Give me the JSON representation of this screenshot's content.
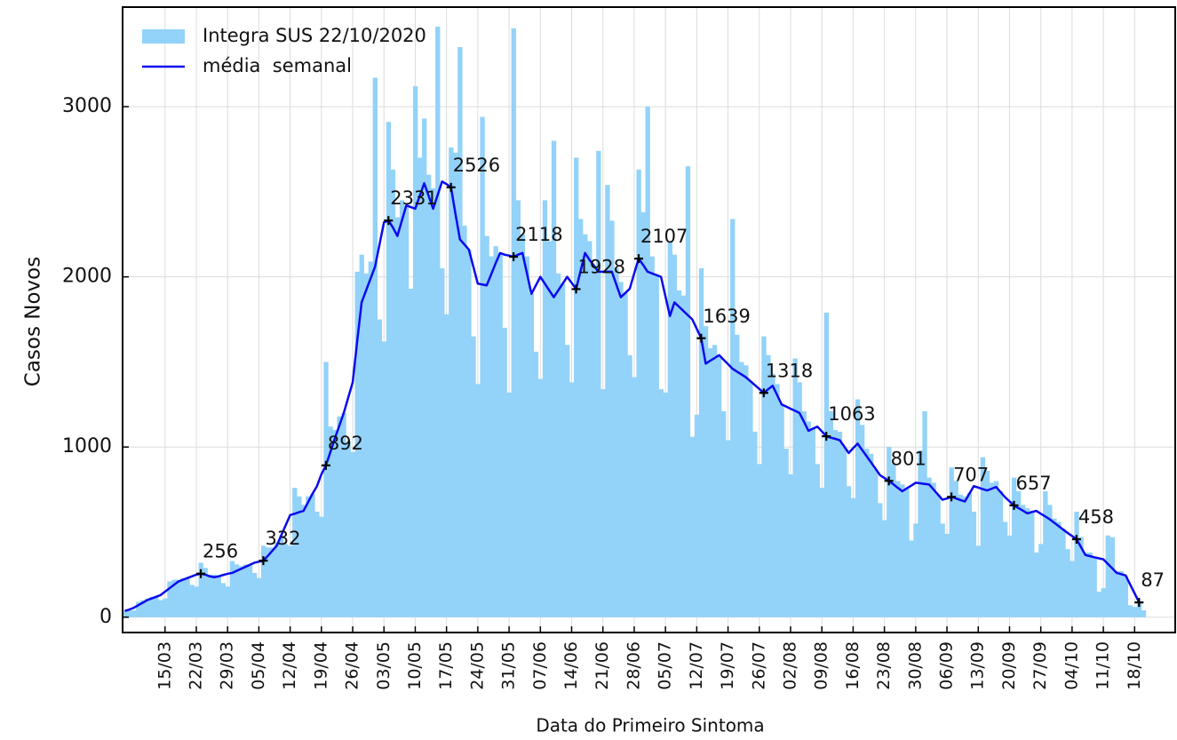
{
  "chart_data": {
    "type": "bar",
    "x_label": "Data do Primeiro Sintoma",
    "y_label": "Casos Novos",
    "categories": [
      null,
      null,
      null,
      null,
      null,
      null,
      null,
      null,
      null,
      "15/03",
      null,
      null,
      null,
      null,
      null,
      null,
      "22/03",
      null,
      null,
      null,
      null,
      null,
      null,
      "29/03",
      null,
      null,
      null,
      null,
      null,
      null,
      "05/04",
      null,
      null,
      null,
      null,
      null,
      null,
      "12/04",
      null,
      null,
      null,
      null,
      null,
      null,
      "19/04",
      null,
      null,
      null,
      null,
      null,
      null,
      "26/04",
      null,
      null,
      null,
      null,
      null,
      null,
      "03/05",
      null,
      null,
      null,
      null,
      null,
      null,
      "10/05",
      null,
      null,
      null,
      null,
      null,
      null,
      "17/05",
      null,
      null,
      null,
      null,
      null,
      null,
      "24/05",
      null,
      null,
      null,
      null,
      null,
      null,
      "31/05",
      null,
      null,
      null,
      null,
      null,
      null,
      "07/06",
      null,
      null,
      null,
      null,
      null,
      null,
      "14/06",
      null,
      null,
      null,
      null,
      null,
      null,
      "21/06",
      null,
      null,
      null,
      null,
      null,
      null,
      "28/06",
      null,
      null,
      null,
      null,
      null,
      null,
      "05/07",
      null,
      null,
      null,
      null,
      null,
      null,
      "12/07",
      null,
      null,
      null,
      null,
      null,
      null,
      "19/07",
      null,
      null,
      null,
      null,
      null,
      null,
      "26/07",
      null,
      null,
      null,
      null,
      null,
      null,
      "02/08",
      null,
      null,
      null,
      null,
      null,
      null,
      "09/08",
      null,
      null,
      null,
      null,
      null,
      null,
      "16/08",
      null,
      null,
      null,
      null,
      null,
      null,
      "23/08",
      null,
      null,
      null,
      null,
      null,
      null,
      "30/08",
      null,
      null,
      null,
      null,
      null,
      null,
      "06/09",
      null,
      null,
      null,
      null,
      null,
      null,
      "13/09",
      null,
      null,
      null,
      null,
      null,
      null,
      "20/09",
      null,
      null,
      null,
      null,
      null,
      null,
      "27/09",
      null,
      null,
      null,
      null,
      null,
      null,
      "04/10",
      null,
      null,
      null,
      null,
      null,
      null,
      "11/10",
      null,
      null,
      null,
      null,
      null,
      null,
      "18/10",
      null,
      null
    ],
    "series": [
      {
        "name": "Integra SUS 22/10/2020",
        "type": "bar",
        "color": "#93d2f9",
        "values": [
          40,
          40,
          40,
          90,
          100,
          110,
          120,
          120,
          100,
          110,
          210,
          220,
          220,
          230,
          230,
          190,
          180,
          320,
          290,
          250,
          250,
          240,
          200,
          180,
          330,
          310,
          300,
          310,
          308,
          260,
          230,
          420,
          410,
          410,
          440,
          480,
          430,
          420,
          760,
          710,
          660,
          710,
          725,
          620,
          590,
          1500,
          1120,
          1100,
          1180,
          1200,
          1030,
          970,
          2030,
          2130,
          2020,
          2090,
          3170,
          1750,
          1620,
          2910,
          2630,
          2350,
          2450,
          2420,
          1930,
          3120,
          2700,
          2930,
          2600,
          2520,
          3470,
          2050,
          1780,
          2760,
          2730,
          3350,
          2300,
          2160,
          1650,
          1370,
          2940,
          2240,
          2120,
          2180,
          2140,
          1700,
          1320,
          3460,
          2450,
          2250,
          2120,
          1900,
          1560,
          1400,
          2450,
          2210,
          2800,
          2020,
          1960,
          1600,
          1380,
          2700,
          2340,
          2250,
          2210,
          2065,
          2740,
          1340,
          2540,
          2330,
          2050,
          1970,
          1905,
          1540,
          1410,
          2630,
          2380,
          3000,
          2120,
          2010,
          1340,
          1320,
          2210,
          2130,
          1920,
          1890,
          2650,
          1060,
          1190,
          2050,
          1710,
          1580,
          1600,
          1540,
          1210,
          1040,
          2340,
          1660,
          1500,
          1480,
          1387,
          1090,
          900,
          1650,
          1540,
          1430,
          1370,
          1250,
          990,
          840,
          1520,
          1380,
          1210,
          1150,
          1108,
          900,
          760,
          1790,
          1210,
          1100,
          1090,
          1000,
          770,
          700,
          1280,
          1130,
          990,
          960,
          870,
          670,
          570,
          1000,
          900,
          800,
          780,
          760,
          450,
          550,
          980,
          1210,
          820,
          790,
          720,
          550,
          490,
          880,
          800,
          720,
          710,
          730,
          620,
          420,
          940,
          860,
          790,
          800,
          740,
          560,
          480,
          820,
          740,
          660,
          640,
          620,
          380,
          430,
          740,
          660,
          580,
          560,
          520,
          400,
          330,
          620,
          470,
          380,
          380,
          350,
          150,
          170,
          480,
          470,
          270,
          270,
          240,
          70,
          60,
          90,
          40
        ]
      },
      {
        "name": "média  semanal",
        "type": "line",
        "color": "#0a0aee",
        "values": [
          37,
          45,
          55,
          70,
          85,
          100,
          110,
          120,
          130,
          150,
          170,
          190,
          210,
          220,
          230,
          240,
          250,
          256,
          250,
          240,
          235,
          240,
          248,
          255,
          260,
          272,
          284,
          296,
          308,
          320,
          326,
          332,
          360,
          390,
          420,
          480,
          540,
          600,
          608,
          617,
          625,
          675,
          725,
          770,
          840,
          892,
          970,
          1050,
          1125,
          1200,
          1290,
          1380,
          1620,
          1850,
          1920,
          1990,
          2060,
          2190,
          2320,
          2331,
          2290,
          2240,
          2330,
          2420,
          2410,
          2400,
          2475,
          2550,
          2475,
          2400,
          2480,
          2560,
          2545,
          2526,
          2370,
          2220,
          2190,
          2160,
          2060,
          1960,
          1955,
          1950,
          2015,
          2080,
          2140,
          2130,
          2125,
          2118,
          2130,
          2140,
          2020,
          1900,
          1950,
          2000,
          1960,
          1920,
          1880,
          1920,
          1960,
          2000,
          1965,
          1928,
          2035,
          2140,
          2100,
          2065,
          2030,
          2030,
          2030,
          2030,
          1955,
          1880,
          1905,
          1930,
          2020,
          2107,
          2070,
          2030,
          2020,
          2010,
          2000,
          1885,
          1770,
          1850,
          1825,
          1800,
          1775,
          1750,
          1695,
          1639,
          1490,
          1507,
          1523,
          1540,
          1513,
          1487,
          1460,
          1443,
          1427,
          1410,
          1387,
          1364,
          1341,
          1318,
          1340,
          1360,
          1305,
          1250,
          1238,
          1225,
          1213,
          1200,
          1148,
          1095,
          1108,
          1120,
          1092,
          1063,
          1055,
          1048,
          1040,
          1003,
          965,
          993,
          1020,
          983,
          947,
          910,
          873,
          835,
          818,
          801,
          781,
          760,
          740,
          757,
          773,
          790,
          787,
          783,
          780,
          750,
          720,
          690,
          698,
          707,
          698,
          689,
          680,
          725,
          770,
          762,
          753,
          745,
          755,
          765,
          735,
          705,
          681,
          657,
          641,
          626,
          610,
          618,
          625,
          608,
          592,
          575,
          555,
          535,
          515,
          495,
          477,
          458,
          412,
          365,
          359,
          352,
          346,
          340,
          313,
          287,
          260,
          253,
          245,
          192,
          140,
          87,
          null
        ],
        "value_labels": [
          null,
          null,
          null,
          null,
          null,
          null,
          null,
          null,
          null,
          null,
          null,
          null,
          null,
          null,
          null,
          null,
          null,
          "256",
          null,
          null,
          null,
          null,
          null,
          null,
          null,
          null,
          null,
          null,
          null,
          null,
          null,
          "332",
          null,
          null,
          null,
          null,
          null,
          null,
          null,
          null,
          null,
          null,
          null,
          null,
          null,
          "892",
          null,
          null,
          null,
          null,
          null,
          null,
          null,
          null,
          null,
          null,
          null,
          null,
          null,
          "2331",
          null,
          null,
          null,
          null,
          null,
          null,
          null,
          null,
          null,
          null,
          null,
          null,
          null,
          "2526",
          null,
          null,
          null,
          null,
          null,
          null,
          null,
          null,
          null,
          null,
          null,
          null,
          null,
          "2118",
          null,
          null,
          null,
          null,
          null,
          null,
          null,
          null,
          null,
          null,
          null,
          null,
          null,
          "1928",
          null,
          null,
          null,
          null,
          null,
          null,
          null,
          null,
          null,
          null,
          null,
          null,
          null,
          "2107",
          null,
          null,
          null,
          null,
          null,
          null,
          null,
          null,
          null,
          null,
          null,
          null,
          null,
          "1639",
          null,
          null,
          null,
          null,
          null,
          null,
          null,
          null,
          null,
          null,
          null,
          null,
          null,
          "1318",
          null,
          null,
          null,
          null,
          null,
          null,
          null,
          null,
          null,
          null,
          null,
          null,
          null,
          "1063",
          null,
          null,
          null,
          null,
          null,
          null,
          null,
          null,
          null,
          null,
          null,
          null,
          null,
          "801",
          null,
          null,
          null,
          null,
          null,
          null,
          null,
          null,
          null,
          null,
          null,
          null,
          null,
          "707",
          null,
          null,
          null,
          null,
          null,
          null,
          null,
          null,
          null,
          null,
          null,
          null,
          null,
          "657",
          null,
          null,
          null,
          null,
          null,
          null,
          null,
          null,
          null,
          null,
          null,
          null,
          null,
          "458",
          null,
          null,
          null,
          null,
          null,
          null,
          null,
          null,
          null,
          null,
          null,
          null,
          null,
          "87",
          null
        ]
      }
    ],
    "ylim": [
      -90,
      3585
    ],
    "yticks": [
      0,
      1000,
      2000,
      3000
    ],
    "grid": true,
    "legend": "upper left"
  }
}
